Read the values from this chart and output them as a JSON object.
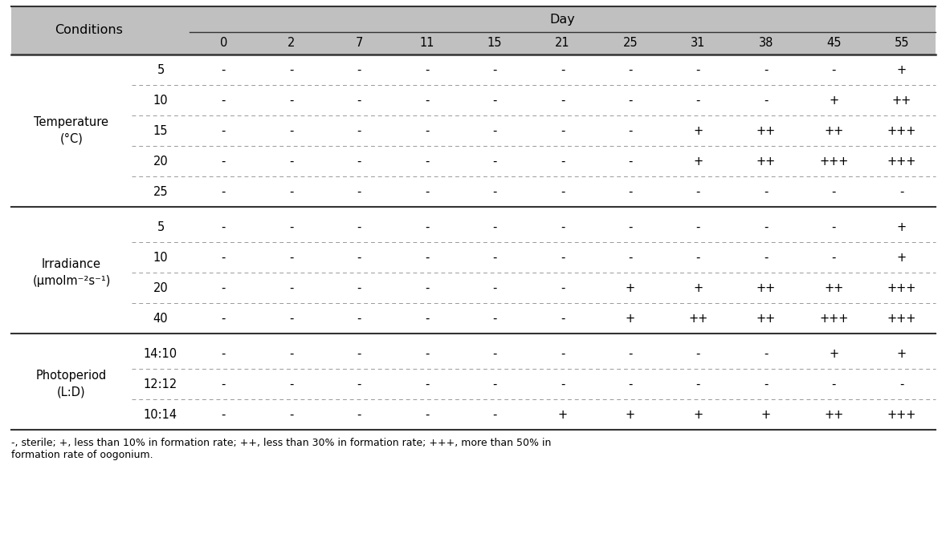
{
  "title": "Day",
  "conditions_label": "Conditions",
  "day_columns": [
    "0",
    "2",
    "7",
    "11",
    "15",
    "21",
    "25",
    "31",
    "38",
    "45",
    "55"
  ],
  "groups": [
    {
      "group_label": "Temperature\n(°C)",
      "rows": [
        {
          "label": "5",
          "values": [
            "-",
            "-",
            "-",
            "-",
            "-",
            "-",
            "-",
            "-",
            "-",
            "-",
            "+"
          ]
        },
        {
          "label": "10",
          "values": [
            "-",
            "-",
            "-",
            "-",
            "-",
            "-",
            "-",
            "-",
            "-",
            "+",
            "++"
          ]
        },
        {
          "label": "15",
          "values": [
            "-",
            "-",
            "-",
            "-",
            "-",
            "-",
            "-",
            "+",
            "++",
            "++",
            "+++"
          ]
        },
        {
          "label": "20",
          "values": [
            "-",
            "-",
            "-",
            "-",
            "-",
            "-",
            "-",
            "+",
            "++",
            "+++",
            "+++"
          ]
        },
        {
          "label": "25",
          "values": [
            "-",
            "-",
            "-",
            "-",
            "-",
            "-",
            "-",
            "-",
            "-",
            "-",
            "-"
          ]
        }
      ]
    },
    {
      "group_label": "Irradiance\n(μmolm⁻²s⁻¹)",
      "rows": [
        {
          "label": "5",
          "values": [
            "-",
            "-",
            "-",
            "-",
            "-",
            "-",
            "-",
            "-",
            "-",
            "-",
            "+"
          ]
        },
        {
          "label": "10",
          "values": [
            "-",
            "-",
            "-",
            "-",
            "-",
            "-",
            "-",
            "-",
            "-",
            "-",
            "+"
          ]
        },
        {
          "label": "20",
          "values": [
            "-",
            "-",
            "-",
            "-",
            "-",
            "-",
            "+",
            "+",
            "++",
            "++",
            "+++"
          ]
        },
        {
          "label": "40",
          "values": [
            "-",
            "-",
            "-",
            "-",
            "-",
            "-",
            "+",
            "++",
            "++",
            "+++",
            "+++"
          ]
        }
      ]
    },
    {
      "group_label": "Photoperiod\n(L:D)",
      "rows": [
        {
          "label": "14:10",
          "values": [
            "-",
            "-",
            "-",
            "-",
            "-",
            "-",
            "-",
            "-",
            "-",
            "+",
            "+"
          ]
        },
        {
          "label": "12:12",
          "values": [
            "-",
            "-",
            "-",
            "-",
            "-",
            "-",
            "-",
            "-",
            "-",
            "-",
            "-"
          ]
        },
        {
          "label": "10:14",
          "values": [
            "-",
            "-",
            "-",
            "-",
            "-",
            "+",
            "+",
            "+",
            "+",
            "++",
            "+++"
          ]
        }
      ]
    }
  ],
  "footnote": "-, sterile; +, less than 10% in formation rate; ++, less than 30% in formation rate; +++, more than 50% in\nformation rate of oogonium.",
  "header_bg": "#c0c0c0",
  "text_color": "#000000",
  "dotted_color": "#999999",
  "solid_color": "#333333",
  "font_size": 10.5,
  "header_font_size": 11.5,
  "footnote_font_size": 9.0
}
